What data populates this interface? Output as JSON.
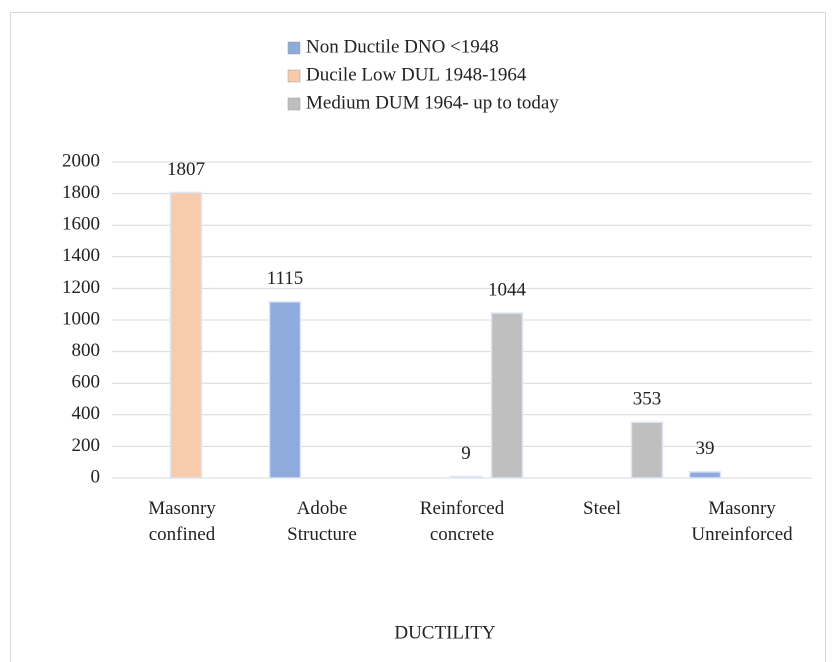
{
  "chart_data": {
    "type": "bar",
    "x_label": "DUCTILITY",
    "categories": [
      "Masonry confined",
      "Adobe Structure",
      "Reinforced concrete",
      "Steel",
      "Masonry Unreinforced"
    ],
    "series": [
      {
        "name": "Non Ductile DNO <1948",
        "color": "#8faadc",
        "values": [
          null,
          1115,
          null,
          null,
          39
        ]
      },
      {
        "name": "Ducile Low DUL 1948-1964",
        "color": "#f8cbad",
        "values": [
          1807,
          null,
          9,
          null,
          null
        ]
      },
      {
        "name": "Medium DUM 1964- up to today",
        "color": "#bfbfbf",
        "values": [
          null,
          null,
          1044,
          353,
          null
        ]
      }
    ],
    "ylim": [
      0,
      2000
    ],
    "yticks": [
      0,
      200,
      400,
      600,
      800,
      1000,
      1200,
      1400,
      1600,
      1800,
      2000
    ],
    "grid": true,
    "legend": "top"
  }
}
